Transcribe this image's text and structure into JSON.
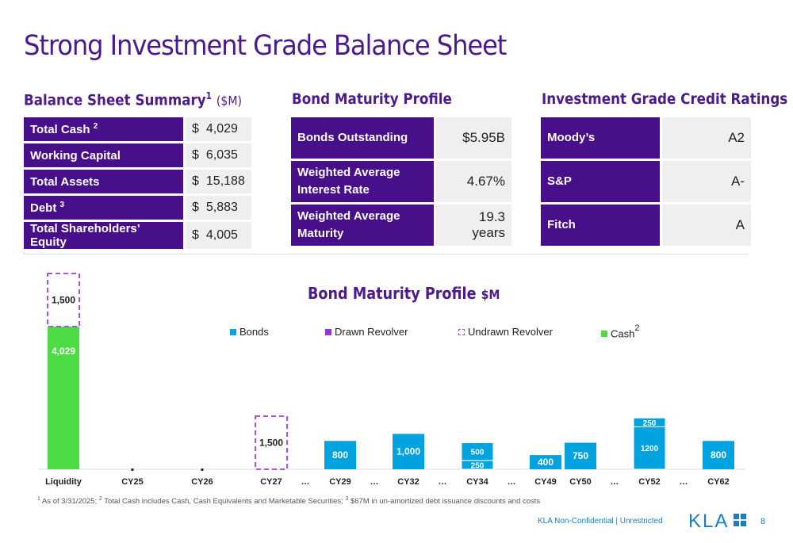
{
  "title": "Strong Investment Grade Balance Sheet",
  "balance_sheet": {
    "heading": "Balance Sheet Summary",
    "heading_sup": "1",
    "heading_unit": "($M)",
    "rows": [
      {
        "label": "Total Cash",
        "sup": "2",
        "cur": "$",
        "value": "4,029"
      },
      {
        "label": "Working Capital",
        "sup": "",
        "cur": "$",
        "value": "6,035"
      },
      {
        "label": "Total Assets",
        "sup": "",
        "cur": "$",
        "value": "15,188"
      },
      {
        "label": "Debt",
        "sup": "3",
        "cur": "$",
        "value": "5,883"
      },
      {
        "label": "Total Shareholders’ Equity",
        "sup": "",
        "cur": "$",
        "value": "4,005"
      }
    ]
  },
  "bond_profile_table": {
    "heading": "Bond Maturity Profile",
    "rows": [
      {
        "label": "Bonds Outstanding",
        "value": "$5.95B"
      },
      {
        "label": "Weighted Average Interest Rate",
        "value": "4.67%"
      },
      {
        "label": "Weighted Average Maturity",
        "value": "19.3 years"
      }
    ]
  },
  "credit_ratings": {
    "heading": "Investment Grade Credit Ratings",
    "rows": [
      {
        "label": "Moody’s",
        "value": "A2"
      },
      {
        "label": "S&P",
        "value": "A-"
      },
      {
        "label": "Fitch",
        "value": "A"
      }
    ]
  },
  "chart_title": "Bond Maturity Profile",
  "chart_unit": "$M",
  "legend": {
    "bonds": "Bonds",
    "drawn": "Drawn Revolver",
    "undrawn": "Undrawn Revolver",
    "cash": "Cash",
    "cash_sup": "2"
  },
  "colors": {
    "purple": "#47108A",
    "bonds": "#00A3E0",
    "cash": "#4CDD44",
    "drawn": "#9B30D9",
    "undrawn": "#B44FE0"
  },
  "chart_data": {
    "type": "bar",
    "stacked": true,
    "categories": [
      "Liquidity",
      "CY25",
      "CY26",
      "CY27",
      "…",
      "CY29",
      "…",
      "CY32",
      "…",
      "CY34",
      "…",
      "CY49",
      "CY50",
      "…",
      "CY52",
      "…",
      "CY62"
    ],
    "series": [
      {
        "name": "Cash",
        "values": [
          4029,
          null,
          null,
          null,
          null,
          null,
          null,
          null,
          null,
          null,
          null,
          null,
          null,
          null,
          null,
          null,
          null
        ]
      },
      {
        "name": "Undrawn Revolver",
        "values": [
          1500,
          null,
          null,
          1500,
          null,
          null,
          null,
          null,
          null,
          null,
          null,
          null,
          null,
          null,
          null,
          null,
          null
        ]
      },
      {
        "name": "Bonds",
        "values": [
          null,
          null,
          null,
          null,
          null,
          800,
          null,
          1000,
          null,
          750,
          null,
          400,
          750,
          null,
          1450,
          null,
          800
        ]
      }
    ],
    "bond_tranches": {
      "CY34": [
        250,
        500
      ],
      "CY52": [
        1200,
        250
      ]
    },
    "data_labels": {
      "Liquidity": [
        "4,029",
        "1,500"
      ],
      "CY27": [
        "1,500"
      ],
      "CY29": [
        "800"
      ],
      "CY32": [
        "1,000"
      ],
      "CY34": [
        "250",
        "500"
      ],
      "CY49": [
        "400"
      ],
      "CY50": [
        "750"
      ],
      "CY52": [
        "1200",
        "250"
      ],
      "CY62": [
        "800"
      ]
    },
    "zero_markers": [
      "CY25",
      "CY26"
    ]
  },
  "footnote": {
    "n1": "1",
    "t1": " As of 3/31/2025; ",
    "n2": "2",
    "t2": " Total Cash includes Cash, Cash Equivalents and Marketable Securities; ",
    "n3": "3",
    "t3": " $67M in un-amortized debt issuance discounts and costs"
  },
  "confidentiality": "KLA Non-Confidential | Unrestricted",
  "logo_text": "KLA",
  "page_number": "8"
}
